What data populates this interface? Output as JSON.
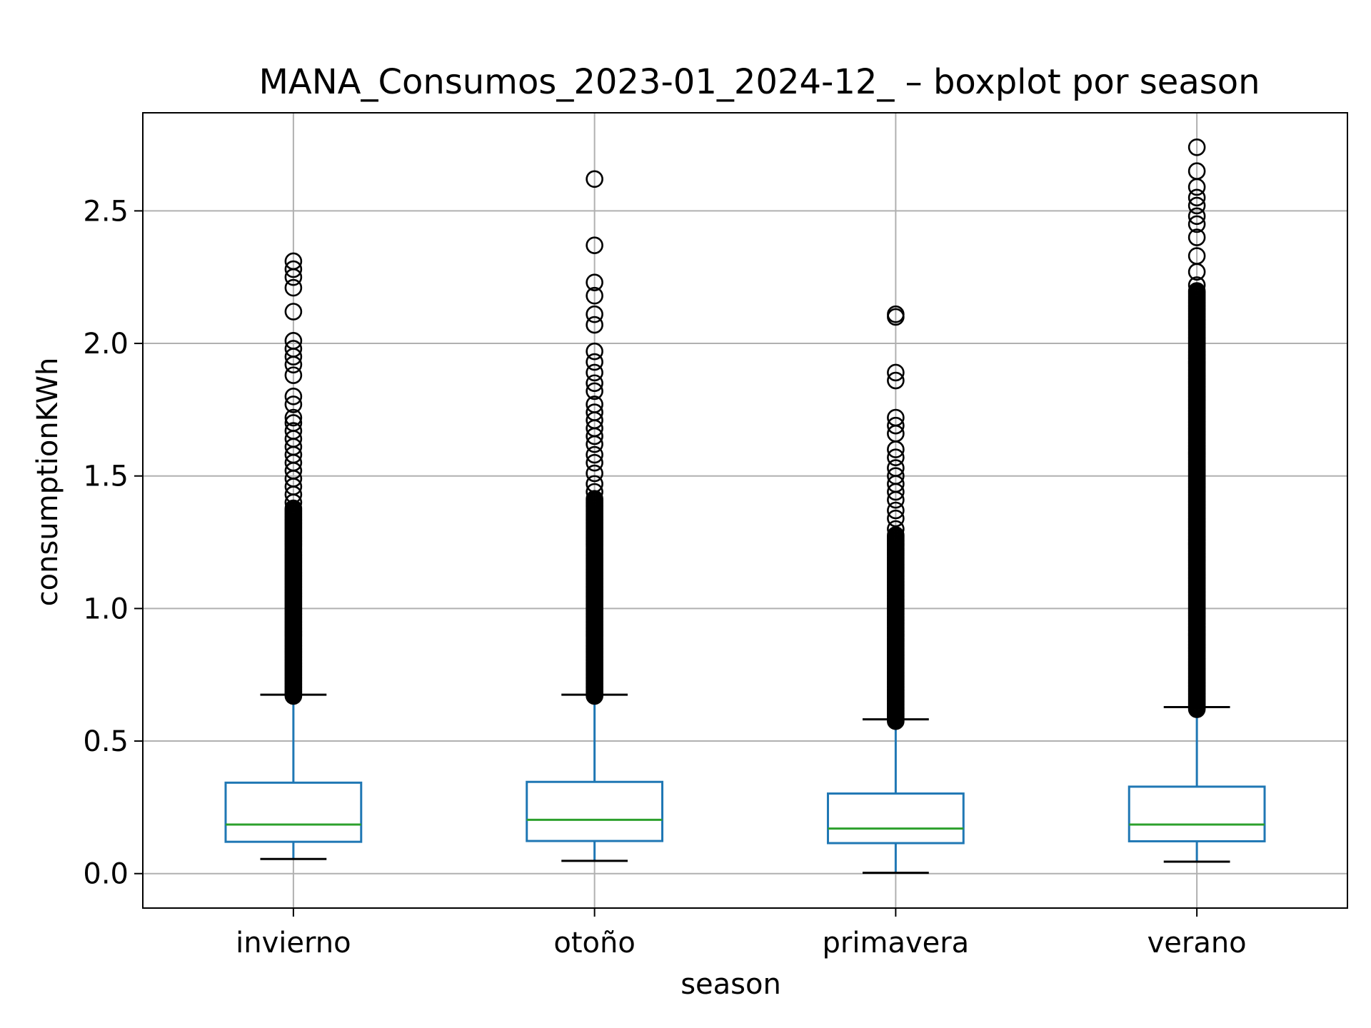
{
  "chart_data": {
    "type": "boxplot",
    "title": "MANA_Consumos_2023-01_2024-12_ – boxplot por season",
    "xlabel": "season",
    "ylabel": "consumptionKWh",
    "ylim": [
      -0.13,
      2.87
    ],
    "yticks": [
      0.0,
      0.5,
      1.0,
      1.5,
      2.0,
      2.5
    ],
    "ytick_labels": [
      "0.0",
      "0.5",
      "1.0",
      "1.5",
      "2.0",
      "2.5"
    ],
    "grid": true,
    "colors": {
      "box": "#1f77b4",
      "median": "#2ca02c",
      "whisker": "#1f77b4",
      "cap": "#000000",
      "flier": "#000000",
      "grid": "#b0b0b0"
    },
    "categories": [
      "invierno",
      "otoño",
      "primavera",
      "verano"
    ],
    "boxes": [
      {
        "name": "invierno",
        "whislo": 0.055,
        "q1": 0.12,
        "med": 0.185,
        "q3": 0.343,
        "whishi": 0.675,
        "fliers": [
          2.31,
          2.28,
          2.25,
          2.21,
          2.12,
          2.01,
          1.98,
          1.95,
          1.92,
          1.88,
          1.8,
          1.77,
          1.72,
          1.7,
          1.67,
          1.64,
          1.61,
          1.58,
          1.55,
          1.52,
          1.49,
          1.46,
          1.43,
          1.4
        ],
        "flier_band": [
          0.67,
          1.38
        ]
      },
      {
        "name": "otoño",
        "whislo": 0.048,
        "q1": 0.123,
        "med": 0.203,
        "q3": 0.346,
        "whishi": 0.675,
        "fliers": [
          2.62,
          2.37,
          2.23,
          2.18,
          2.11,
          2.07,
          1.97,
          1.93,
          1.89,
          1.85,
          1.82,
          1.77,
          1.74,
          1.71,
          1.68,
          1.65,
          1.62,
          1.58,
          1.55,
          1.51,
          1.47,
          1.44
        ],
        "flier_band": [
          0.67,
          1.42
        ]
      },
      {
        "name": "primavera",
        "whislo": 0.003,
        "q1": 0.115,
        "med": 0.17,
        "q3": 0.302,
        "whishi": 0.582,
        "fliers": [
          2.11,
          2.1,
          1.89,
          1.86,
          1.72,
          1.69,
          1.66,
          1.6,
          1.57,
          1.53,
          1.5,
          1.47,
          1.44,
          1.41,
          1.37,
          1.34,
          1.3
        ],
        "flier_band": [
          0.575,
          1.28
        ]
      },
      {
        "name": "verano",
        "whislo": 0.045,
        "q1": 0.122,
        "med": 0.185,
        "q3": 0.328,
        "whishi": 0.628,
        "fliers": [
          2.74,
          2.65,
          2.59,
          2.55,
          2.52,
          2.48,
          2.45,
          2.4,
          2.33,
          2.27,
          2.22
        ],
        "flier_band": [
          0.62,
          2.2
        ]
      }
    ]
  }
}
